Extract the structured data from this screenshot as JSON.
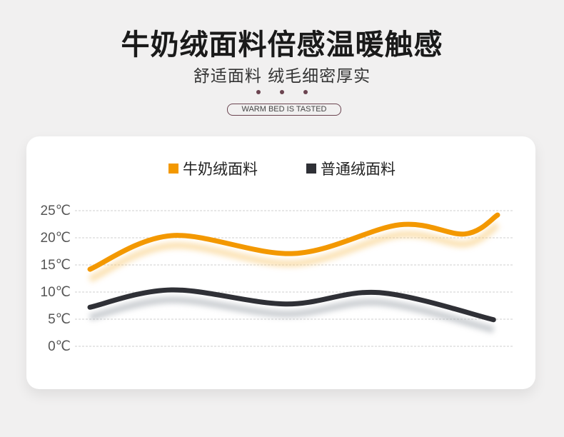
{
  "header": {
    "title": "牛奶绒面料倍感温暖触感",
    "subtitle": "舒适面料 绒毛细密厚实",
    "tagline": "WARM BED IS TASTED"
  },
  "colors": {
    "accent": "#f39800",
    "dark": "#2f3036",
    "ornament": "#6b4450"
  },
  "chart_data": {
    "type": "line",
    "title": "",
    "xlabel": "",
    "ylabel": "",
    "ylim": [
      0,
      25
    ],
    "xlim": [
      0,
      100
    ],
    "yticks": [
      "25℃",
      "20℃",
      "15℃",
      "10℃",
      "5℃",
      "0℃"
    ],
    "ytick_values": [
      25,
      20,
      15,
      10,
      5,
      0
    ],
    "grid": true,
    "legend_position": "top-center",
    "series": [
      {
        "name": "牛奶绒面料",
        "color": "#f39800",
        "x": [
          0,
          20,
          50,
          76,
          92,
          100
        ],
        "values": [
          14.2,
          20.4,
          17.1,
          22.4,
          20.7,
          24.2
        ]
      },
      {
        "name": "普通绒面料",
        "color": "#2f3036",
        "x": [
          0,
          20,
          48,
          71,
          99
        ],
        "values": [
          7.2,
          10.4,
          7.8,
          9.9,
          4.9
        ]
      }
    ]
  }
}
